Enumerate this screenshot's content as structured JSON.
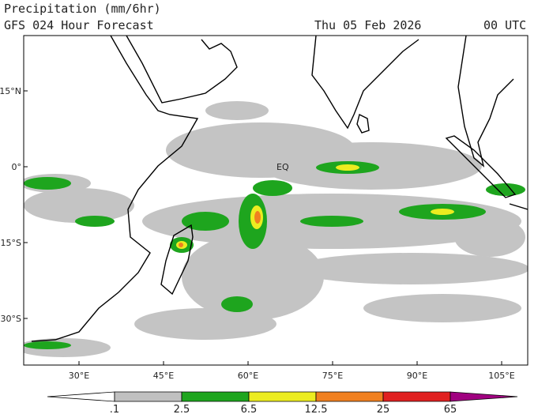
{
  "header": {
    "title": "Precipitation (mm/6hr)",
    "subtitle": "GFS 024 Hour Forecast",
    "date": "Thu 05 Feb 2026",
    "time": "00 UTC"
  },
  "map": {
    "lat_labels": [
      "15°N",
      "0°",
      "15°S",
      "30°S"
    ],
    "lon_labels": [
      "30°E",
      "45°E",
      "60°E",
      "75°E",
      "90°E",
      "105°E"
    ],
    "equator_label": "EQ"
  },
  "colorbar": {
    "labels": [
      ".1",
      "2.5",
      "6.5",
      "12.5",
      "25",
      "65"
    ],
    "colors": [
      "#ffffff",
      "#c0c0c0",
      "#1ea51e",
      "#ecec20",
      "#f08020",
      "#e02020",
      "#a00080"
    ]
  }
}
